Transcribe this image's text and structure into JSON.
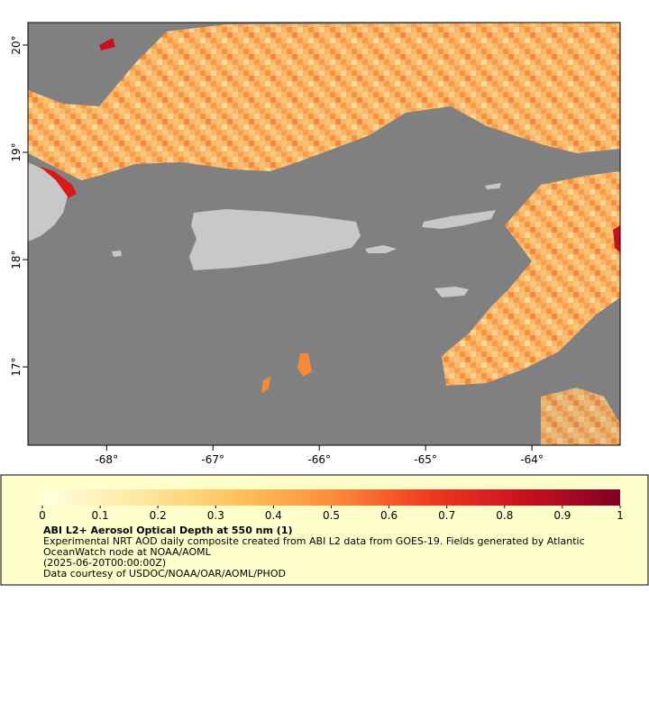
{
  "map": {
    "xlim": [
      -68.74,
      -63.17
    ],
    "ylim": [
      16.27,
      20.21
    ],
    "xticks": [
      {
        "value": -68,
        "label": "-68°"
      },
      {
        "value": -67,
        "label": "-67°"
      },
      {
        "value": -66,
        "label": "-66°"
      },
      {
        "value": -65,
        "label": "-65°"
      },
      {
        "value": -64,
        "label": "-64°"
      }
    ],
    "yticks": [
      {
        "value": 17,
        "label": "17°"
      },
      {
        "value": 18,
        "label": "18°"
      },
      {
        "value": 19,
        "label": "19°"
      },
      {
        "value": 20,
        "label": "20°"
      }
    ]
  },
  "colorbar": {
    "range": [
      0,
      1
    ],
    "ticks": [
      0,
      0.1,
      0.2,
      0.3,
      0.4,
      0.5,
      0.6,
      0.7,
      0.8,
      0.9,
      1
    ],
    "colors": [
      "#ffffe0",
      "#fee8a0",
      "#fec35c",
      "#fd8d3c",
      "#f03b20",
      "#c9111e",
      "#800026"
    ]
  },
  "caption": {
    "title": "ABI L2+ Aerosol Optical Depth at 550 nm (1)",
    "description": "Experimental NRT AOD daily composite created from ABI L2 data from GOES-19. Fields generated by Atlantic OceanWatch node at NOAA/AOML",
    "time": "(2025-06-20T00:00:00Z)",
    "credit": "Data courtesy of USDOC/NOAA/OAR/AOML/PHOD"
  }
}
